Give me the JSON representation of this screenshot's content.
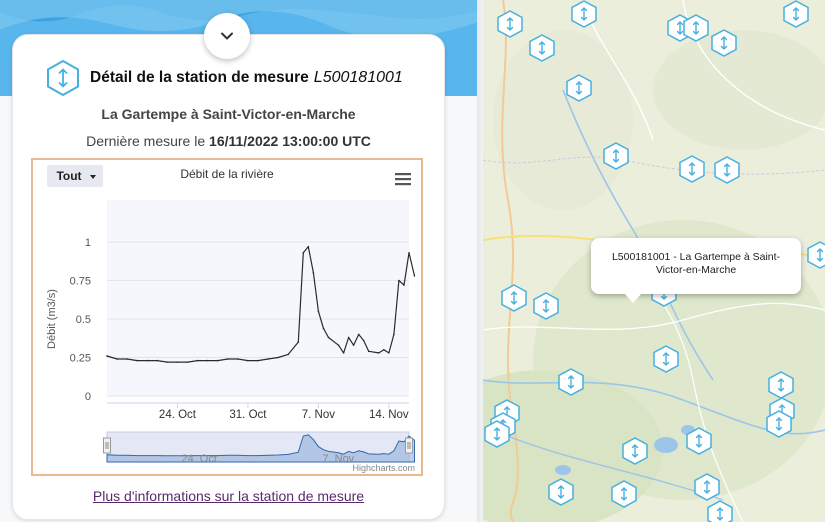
{
  "station": {
    "title_prefix": "Détail de la station de mesure",
    "code": "L500181001",
    "name": "La Gartempe à Saint-Victor-en-Marche",
    "last_measure_prefix": "Dernière mesure le",
    "last_measure_datetime": "16/11/2022 13:00:00 UTC",
    "more_info_link": "Plus d'informations sur la station de mesure"
  },
  "chart_data": {
    "type": "line",
    "title": "Débit de la rivière",
    "ylabel": "Débit (m3/s)",
    "xlabel": "",
    "range_selector_label": "Tout",
    "credits": "Highcharts.com",
    "y_ticks": [
      "0",
      "0.25",
      "0.5",
      "0.75",
      "1"
    ],
    "x_ticks": [
      {
        "date": "2022-10-24",
        "label": "24. Oct"
      },
      {
        "date": "2022-10-31",
        "label": "31. Oct"
      },
      {
        "date": "2022-11-07",
        "label": "7. Nov"
      },
      {
        "date": "2022-11-14",
        "label": "14. Nov"
      }
    ],
    "navigator_labels": [
      {
        "date": "2022-10-24",
        "label": "24. Oct"
      },
      {
        "date": "2022-11-07",
        "label": "7. Nov"
      }
    ],
    "x_range": [
      "2022-10-17",
      "2022-11-16"
    ],
    "ylim": [
      0,
      1
    ],
    "color": "#2b2b2b",
    "series": [
      {
        "points": [
          [
            "2022-10-17",
            0.26
          ],
          [
            "2022-10-18",
            0.24
          ],
          [
            "2022-10-19",
            0.24
          ],
          [
            "2022-10-20",
            0.23
          ],
          [
            "2022-10-21",
            0.23
          ],
          [
            "2022-10-22",
            0.23
          ],
          [
            "2022-10-23",
            0.22
          ],
          [
            "2022-10-24",
            0.22
          ],
          [
            "2022-10-25",
            0.22
          ],
          [
            "2022-10-26",
            0.23
          ],
          [
            "2022-10-27",
            0.23
          ],
          [
            "2022-10-28",
            0.23
          ],
          [
            "2022-10-29",
            0.24
          ],
          [
            "2022-10-30",
            0.24
          ],
          [
            "2022-10-31",
            0.23
          ],
          [
            "2022-11-01",
            0.23
          ],
          [
            "2022-11-02",
            0.24
          ],
          [
            "2022-11-03",
            0.25
          ],
          [
            "2022-11-04",
            0.27
          ],
          [
            "2022-11-05",
            0.35
          ],
          [
            "2022-11-05T12:00",
            0.93
          ],
          [
            "2022-11-06",
            0.97
          ],
          [
            "2022-11-06T12:00",
            0.8
          ],
          [
            "2022-11-07",
            0.55
          ],
          [
            "2022-11-07T12:00",
            0.44
          ],
          [
            "2022-11-08",
            0.38
          ],
          [
            "2022-11-09",
            0.33
          ],
          [
            "2022-11-09T12:00",
            0.28
          ],
          [
            "2022-11-10",
            0.38
          ],
          [
            "2022-11-10T12:00",
            0.33
          ],
          [
            "2022-11-11",
            0.4
          ],
          [
            "2022-11-11T12:00",
            0.36
          ],
          [
            "2022-11-12",
            0.29
          ],
          [
            "2022-11-13",
            0.28
          ],
          [
            "2022-11-13T12:00",
            0.3
          ],
          [
            "2022-11-14",
            0.28
          ],
          [
            "2022-11-14T12:00",
            0.4
          ],
          [
            "2022-11-15",
            0.75
          ],
          [
            "2022-11-15T12:00",
            0.72
          ],
          [
            "2022-11-16",
            0.93
          ],
          [
            "2022-11-16T13:00",
            0.78
          ]
        ]
      }
    ]
  },
  "map": {
    "popup_text": "L500181001 - La Gartempe à Saint-Victor-en-Marche",
    "marker_icon": "station-hex-icon",
    "marker_color": "#47b0df"
  },
  "colors": {
    "wave_light": "#80cbf3",
    "wave_dark": "#56b4ea",
    "hex_accent": "#47b0df",
    "chart_border": "#e9b98f"
  }
}
